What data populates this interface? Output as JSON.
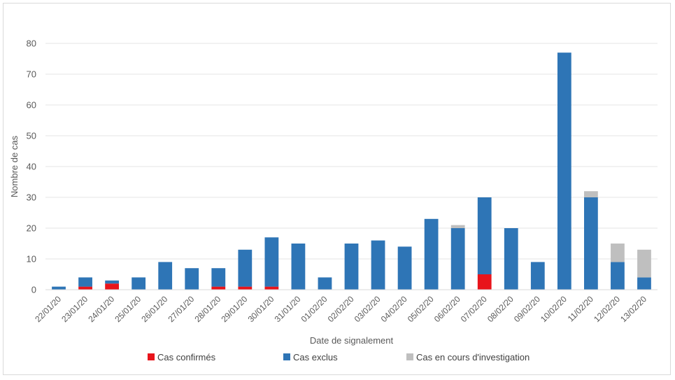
{
  "chart_data": {
    "type": "bar",
    "stacked": true,
    "xlabel": "Date de signalement",
    "ylabel": "Nombre de cas",
    "ylim": [
      0,
      80
    ],
    "yticks": [
      0,
      10,
      20,
      30,
      40,
      50,
      60,
      70,
      80
    ],
    "grid": true,
    "legend_position": "bottom",
    "categories": [
      "22/01/20",
      "23/01/20",
      "24/01/20",
      "25/01/20",
      "26/01/20",
      "27/01/20",
      "28/01/20",
      "29/01/20",
      "30/01/20",
      "31/01/20",
      "01/02/20",
      "02/02/20",
      "03/02/20",
      "04/02/20",
      "05/02/20",
      "06/02/20",
      "07/02/20",
      "08/02/20",
      "09/02/20",
      "10/02/20",
      "11/02/20",
      "12/02/20",
      "13/02/20"
    ],
    "series": [
      {
        "name": "Cas confirmés",
        "color": "#e8141b",
        "values": [
          0,
          1,
          2,
          0,
          0,
          0,
          1,
          1,
          1,
          0,
          0,
          0,
          0,
          0,
          0,
          0,
          5,
          0,
          0,
          0,
          0,
          0,
          0
        ]
      },
      {
        "name": "Cas exclus",
        "color": "#2e75b6",
        "values": [
          1,
          3,
          1,
          4,
          9,
          7,
          6,
          12,
          16,
          15,
          4,
          15,
          16,
          14,
          23,
          20,
          25,
          20,
          9,
          77,
          30,
          9,
          4
        ]
      },
      {
        "name": "Cas en cours d'investigation",
        "color": "#bfbfbf",
        "values": [
          0,
          0,
          0,
          0,
          0,
          0,
          0,
          0,
          0,
          0,
          0,
          0,
          0,
          0,
          0,
          1,
          0,
          0,
          0,
          0,
          2,
          6,
          9
        ]
      }
    ]
  }
}
